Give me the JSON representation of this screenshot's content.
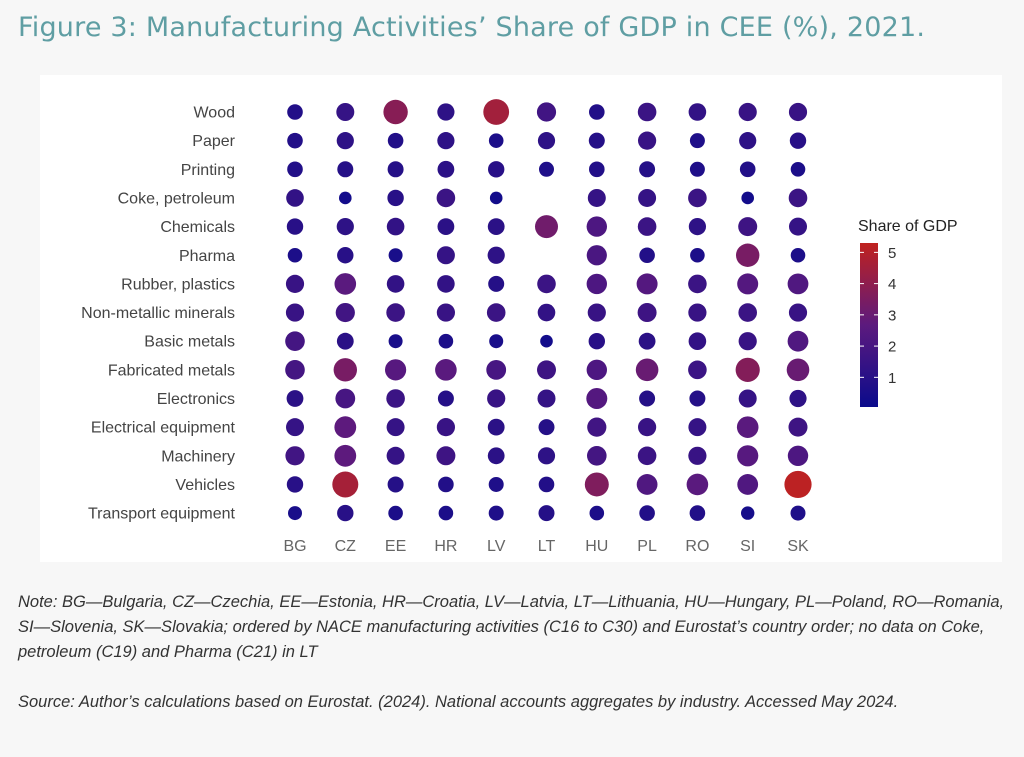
{
  "title": "Figure 3: Manufacturing Activities’ Share of GDP in CEE (%), 2021.",
  "chart_data": {
    "type": "scatter",
    "subtype": "bubble-matrix",
    "title": "Figure 3: Manufacturing Activities’ Share of GDP in CEE (%), 2021.",
    "countries": [
      "BG",
      "CZ",
      "EE",
      "HR",
      "LV",
      "LT",
      "HU",
      "PL",
      "RO",
      "SI",
      "SK"
    ],
    "activities": [
      "Wood",
      "Paper",
      "Printing",
      "Coke, petroleum",
      "Chemicals",
      "Pharma",
      "Rubber, plastics",
      "Non-metallic minerals",
      "Basic metals",
      "Fabricated metals",
      "Electronics",
      "Electrical equipment",
      "Machinery",
      "Vehicles",
      "Transport equipment"
    ],
    "values": [
      [
        0.8,
        1.4,
        3.8,
        1.2,
        4.5,
        1.8,
        0.8,
        1.6,
        1.3,
        1.5,
        1.5
      ],
      [
        0.8,
        1.2,
        0.8,
        1.2,
        0.6,
        1.2,
        0.9,
        1.5,
        0.7,
        1.2,
        1.0
      ],
      [
        0.8,
        0.9,
        0.9,
        1.1,
        1.0,
        0.7,
        0.8,
        0.9,
        0.7,
        0.8,
        0.6
      ],
      [
        1.3,
        0.3,
        1.0,
        1.6,
        0.3,
        null,
        1.4,
        1.4,
        1.6,
        0.3,
        1.6
      ],
      [
        1.0,
        1.2,
        1.3,
        1.1,
        1.1,
        3.2,
        2.2,
        1.6,
        1.2,
        1.7,
        1.4
      ],
      [
        0.6,
        1.0,
        0.5,
        1.4,
        1.2,
        null,
        2.1,
        0.8,
        0.6,
        3.4,
        0.6
      ],
      [
        1.5,
        2.6,
        1.3,
        1.3,
        0.9,
        1.6,
        2.2,
        2.4,
        1.6,
        2.4,
        2.3
      ],
      [
        1.5,
        1.8,
        1.6,
        1.5,
        1.6,
        1.3,
        1.5,
        1.7,
        1.5,
        1.6,
        1.5
      ],
      [
        1.9,
        1.1,
        0.5,
        0.6,
        0.5,
        0.3,
        1.0,
        1.1,
        1.3,
        1.5,
        2.3
      ],
      [
        1.9,
        3.4,
        2.5,
        2.6,
        2.0,
        1.7,
        2.2,
        3.0,
        1.6,
        3.7,
        3.0
      ],
      [
        1.1,
        2.0,
        1.6,
        0.9,
        1.5,
        1.4,
        2.4,
        0.9,
        0.9,
        1.4,
        1.2
      ],
      [
        1.4,
        2.7,
        1.4,
        1.5,
        1.1,
        0.9,
        1.8,
        1.5,
        1.4,
        2.6,
        1.7
      ],
      [
        1.8,
        2.7,
        1.4,
        1.7,
        1.1,
        1.2,
        1.9,
        1.6,
        1.5,
        2.5,
        2.2
      ],
      [
        1.0,
        4.6,
        0.9,
        0.8,
        0.7,
        0.8,
        3.6,
        2.3,
        2.6,
        2.3,
        5.2
      ],
      [
        0.5,
        1.0,
        0.6,
        0.6,
        0.7,
        0.9,
        0.6,
        0.8,
        0.8,
        0.4,
        0.7
      ]
    ],
    "legend": {
      "title": "Share of GDP",
      "ticks": [
        "1",
        "2",
        "3",
        "4",
        "5"
      ],
      "range": [
        0.05,
        5.3
      ],
      "placement": "right"
    },
    "colors": {
      "low": "#0b0b8c",
      "mid": "#5c1a7e",
      "high": "#c0221f"
    }
  },
  "note": "Note: BG—Bulgaria, CZ—Czechia, EE—Estonia, HR—Croatia, LV—Latvia, LT—Lithuania, HU—Hungary, PL—Poland, RO—Romania, SI—Slovenia, SK—Slovakia; ordered by NACE manufacturing activities (C16 to C30) and Eurostat’s country order; no data on Coke, petroleum (C19) and Pharma (C21) in LT",
  "source": "Source: Author’s calculations based on Eurostat. (2024). National accounts aggregates by industry. Accessed May 2024."
}
